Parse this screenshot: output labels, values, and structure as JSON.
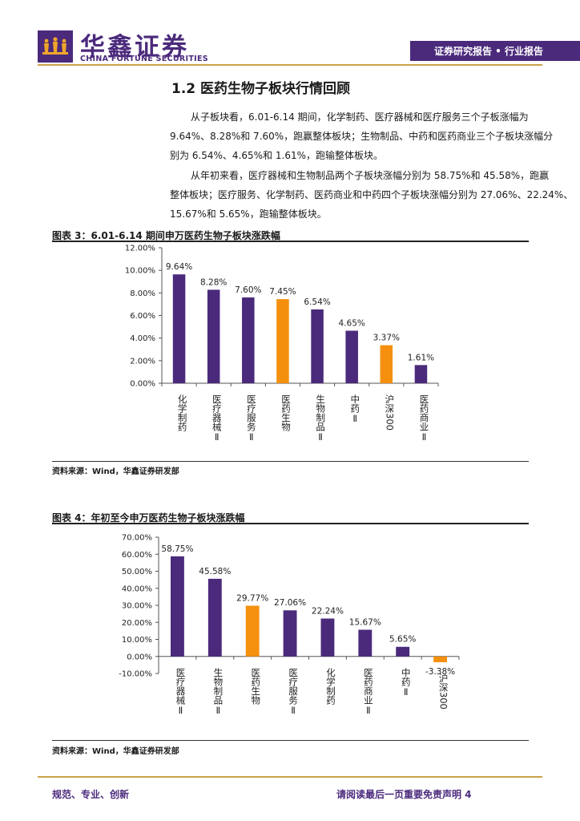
{
  "header": {
    "brand_cn": "华鑫证券",
    "brand_en": "CHINA FORTUNE SECURITIES",
    "band_label": "证券研究报告 • 行业报告",
    "logo_icon": "crown-figures-logo-icon",
    "brand_color": "#4b2a7c",
    "accent_color": "#c9a24a"
  },
  "section_title": "1.2 医药生物子板块行情回顾",
  "paragraphs": [
    [
      "从子板块看，6.01-6.14 期间，化学制药、医疗器械和医疗服务三个子板涨幅为",
      "9.64%、8.28%和 7.60%，跑赢整体板块；生物制品、中药和医药商业三个子板块涨幅分",
      "别为 6.54%、4.65%和 1.61%，跑输整体板块。"
    ],
    [
      "从年初来看，医疗器械和生物制品两个子板块涨幅分别为 58.75%和 45.58%，跑赢",
      "整体板块；医疗服务、化学制药、医药商业和中药四个子板块涨幅分别为 27.06%、22.24%、",
      "15.67%和 5.65%，跑输整体板块。"
    ]
  ],
  "figures": [
    {
      "title": "图表 3：6.01-6.14 期间申万医药生物子板块涨跌幅",
      "source": "资料来源：Wind，华鑫证券研发部"
    },
    {
      "title": "图表 4：年初至今申万医药生物子板块涨跌幅",
      "source": "资料来源：Wind，华鑫证券研发部"
    }
  ],
  "chart_data": [
    {
      "type": "bar",
      "categories": [
        "化学制药",
        "医疗器械Ⅱ",
        "医疗服务Ⅱ",
        "医药生物",
        "生物制品Ⅱ",
        "中药Ⅱ",
        "沪深300",
        "医药商业Ⅱ"
      ],
      "values": [
        9.64,
        8.28,
        7.6,
        7.45,
        6.54,
        4.65,
        3.37,
        1.61
      ],
      "data_labels": [
        "9.64%",
        "8.28%",
        "7.60%",
        "7.45%",
        "6.54%",
        "4.65%",
        "3.37%",
        "1.61%"
      ],
      "highlight": [
        false,
        false,
        false,
        true,
        false,
        false,
        true,
        false
      ],
      "colors": {
        "bar": "#4b2a7c",
        "highlight": "#f5900f"
      },
      "ylim": [
        0,
        12
      ],
      "yticks": [
        0,
        2,
        4,
        6,
        8,
        10,
        12
      ],
      "ytick_labels": [
        "0.00%",
        "2.00%",
        "4.00%",
        "6.00%",
        "8.00%",
        "10.00%",
        "12.00%"
      ],
      "grid": false,
      "legend": "none",
      "xlabel": "",
      "ylabel": ""
    },
    {
      "type": "bar",
      "categories": [
        "医疗器械Ⅱ",
        "生物制品Ⅱ",
        "医药生物",
        "医疗服务Ⅱ",
        "化学制药",
        "医药商业Ⅱ",
        "中药Ⅱ",
        "沪深300"
      ],
      "values": [
        58.75,
        45.58,
        29.77,
        27.06,
        22.24,
        15.67,
        5.65,
        -3.38
      ],
      "data_labels": [
        "58.75%",
        "45.58%",
        "29.77%",
        "27.06%",
        "22.24%",
        "15.67%",
        "5.65%",
        "-3.38%"
      ],
      "highlight": [
        false,
        false,
        true,
        false,
        false,
        false,
        false,
        true
      ],
      "colors": {
        "bar": "#4b2a7c",
        "highlight": "#f5900f"
      },
      "ylim": [
        -10,
        70
      ],
      "yticks": [
        -10,
        0,
        10,
        20,
        30,
        40,
        50,
        60,
        70
      ],
      "ytick_labels": [
        "-10.00%",
        "0.00%",
        "10.00%",
        "20.00%",
        "30.00%",
        "40.00%",
        "50.00%",
        "60.00%",
        "70.00%"
      ],
      "grid": false,
      "legend": "none",
      "xlabel": "",
      "ylabel": ""
    }
  ],
  "footer": {
    "left": "规范、专业、创新",
    "right": "请阅读最后一页重要免责声明 4"
  }
}
